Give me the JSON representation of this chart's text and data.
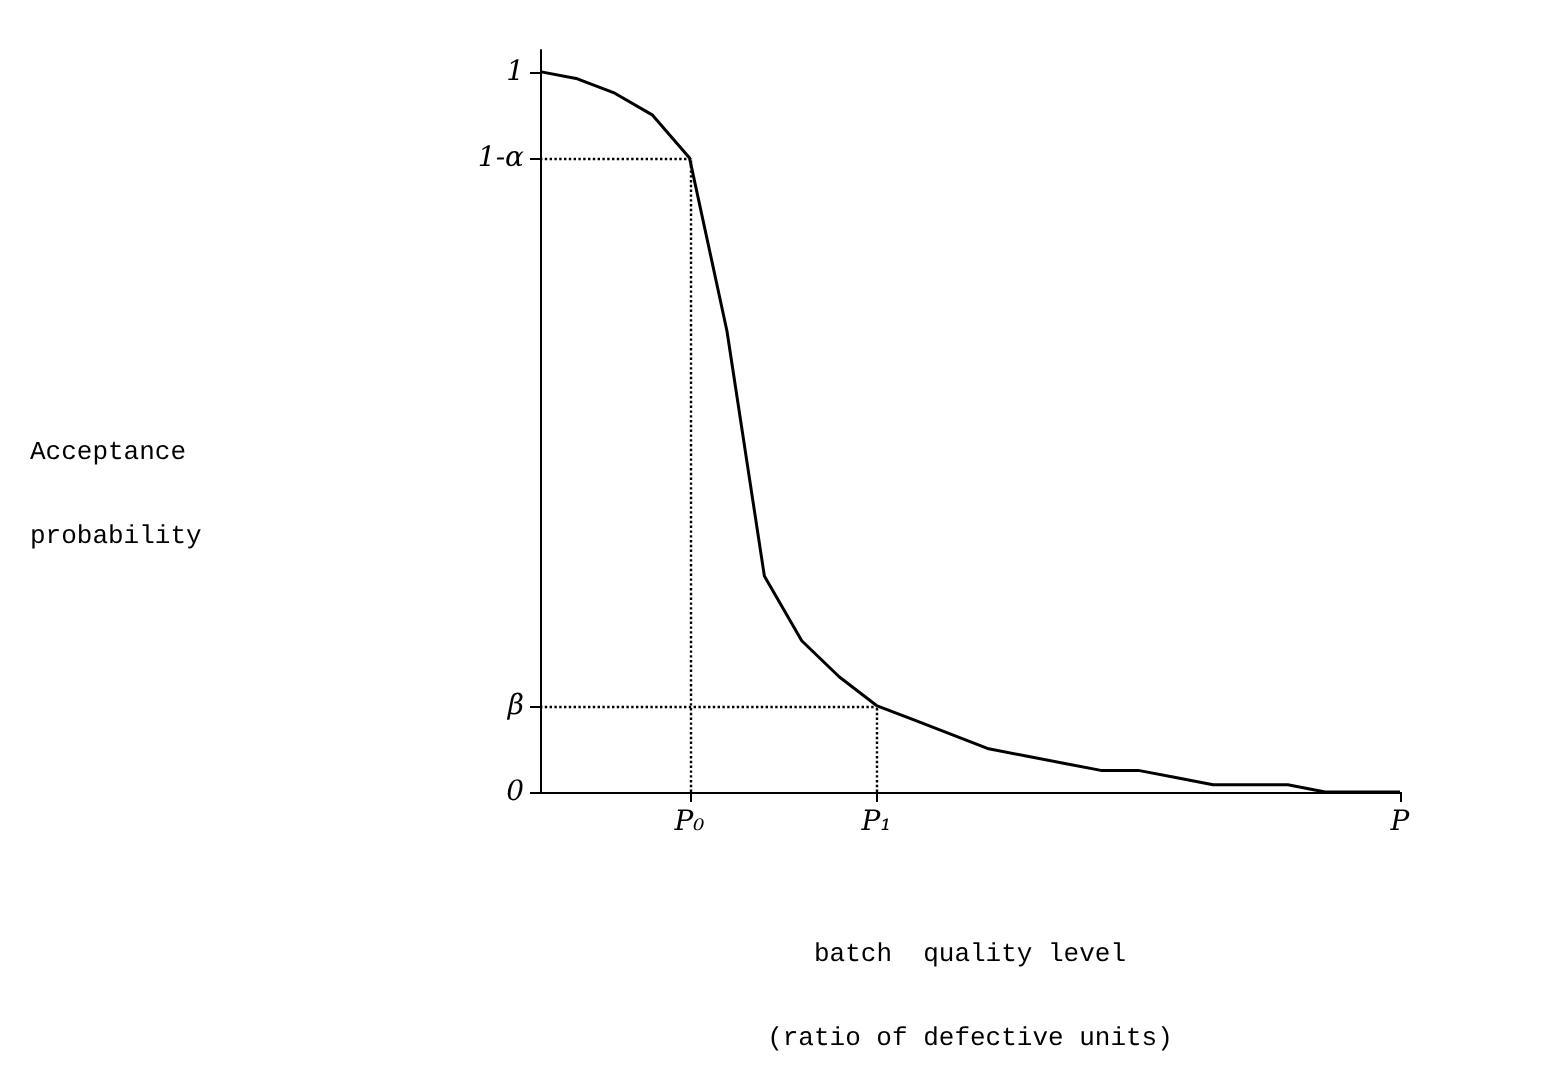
{
  "chart_data": {
    "type": "line",
    "xlabel": "batch  quality level\n(ratio of defective units)",
    "ylabel": "Acceptance\nprobability",
    "categories": [
      null,
      null,
      null,
      null,
      "P₀",
      null,
      null,
      null,
      null,
      "P₁",
      null,
      null,
      null,
      null,
      null,
      null,
      null,
      null,
      null,
      null,
      null,
      null,
      null,
      "P"
    ],
    "series": [
      {
        "color": "#000000",
        "values": [
          1.0,
          0.99,
          0.97,
          0.94,
          0.88,
          0.64,
          0.3,
          0.21,
          0.16,
          0.12,
          0.1,
          0.08,
          0.06,
          0.05,
          0.04,
          0.03,
          0.03,
          0.02,
          0.01,
          0.01,
          0.01,
          0.0,
          0.0,
          0.0
        ]
      }
    ],
    "ylim": [
      0,
      1.03
    ],
    "yticks": [
      {
        "value": 0,
        "label": "0"
      },
      {
        "value": 0.12,
        "label": "β"
      },
      {
        "value": 0.88,
        "label": "1-α"
      },
      {
        "value": 1,
        "label": "1"
      }
    ],
    "ref_lines": [
      {
        "axis": "y",
        "value": 0.88,
        "color": "#000000",
        "line_style": "dotted"
      },
      {
        "axis": "y",
        "value": 0.12,
        "color": "#000000",
        "line_style": "dotted"
      },
      {
        "axis": "x",
        "value": "P₀",
        "color": "#000000",
        "line_style": "dotted"
      },
      {
        "axis": "x",
        "value": "P₁",
        "color": "#000000",
        "line_style": "dotted"
      }
    ],
    "grid": false,
    "marker": "none",
    "line_style": "solid"
  }
}
